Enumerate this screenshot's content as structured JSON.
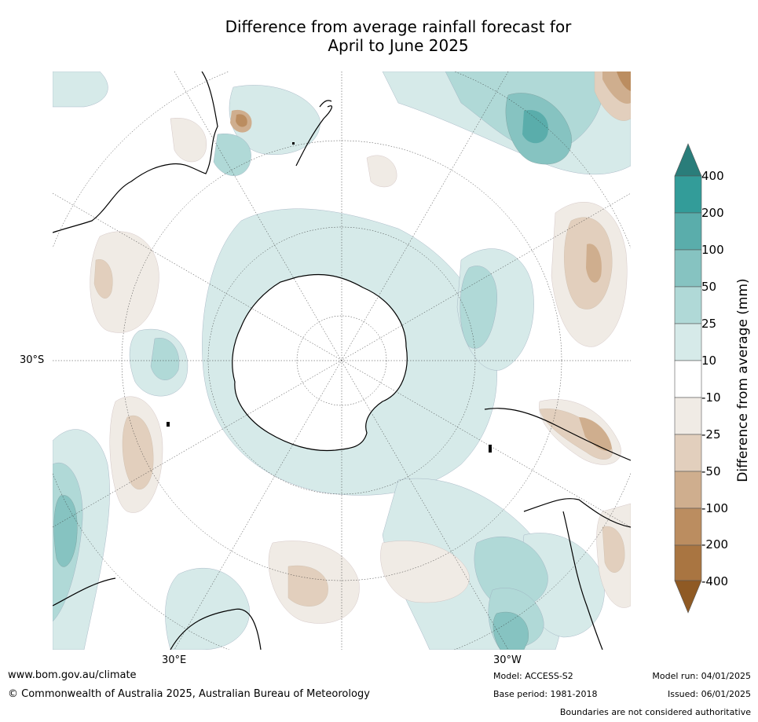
{
  "title_line1": "Difference from average rainfall forecast for",
  "title_line2": "April to June 2025",
  "axes": {
    "lat_label": "30°S",
    "lon_east_label": "30°E",
    "lon_west_label": "30°W"
  },
  "colorbar": {
    "title": "Difference from average (mm)",
    "ticks": [
      "400",
      "200",
      "100",
      "50",
      "25",
      "10",
      "-10",
      "-25",
      "-50",
      "-100",
      "-200",
      "-400"
    ],
    "colors": {
      "above_400": "#2a7d7a",
      "200_400": "#339c99",
      "100_200": "#5aadab",
      "50_100": "#86c3c1",
      "25_50": "#b0d9d7",
      "10_25": "#d6eae9",
      "neutral": "#ffffff",
      "m10_m25": "#f0ebe5",
      "m25_m50": "#e2cfbd",
      "m50_m100": "#cfae8e",
      "m100_m200": "#bb8d60",
      "m200_m400": "#a97541",
      "below_m400": "#8f5a24"
    }
  },
  "footer": {
    "url": "www.bom.gov.au/climate",
    "copyright": "© Commonwealth of Australia 2025, Australian Bureau of Meteorology",
    "model": "Model: ACCESS-S2",
    "base_period": "Base period: 1981-2018",
    "model_run": "Model run: 04/01/2025",
    "issued": "Issued: 06/01/2025",
    "disclaimer": "Boundaries are not considered authoritative"
  }
}
